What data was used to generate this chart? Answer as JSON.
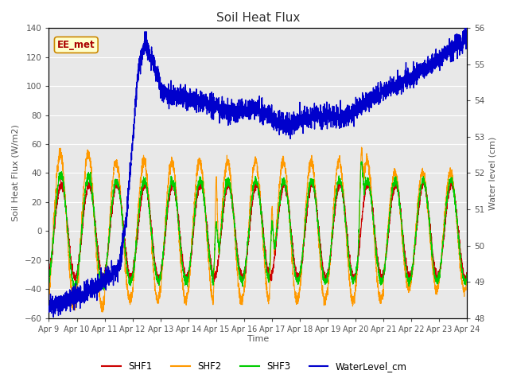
{
  "title": "Soil Heat Flux",
  "xlabel": "Time",
  "ylabel_left": "Soil Heat Flux (W/m2)",
  "ylabel_right": "Water level (cm)",
  "ylim_left": [
    -60,
    140
  ],
  "ylim_right": [
    48.0,
    56.0
  ],
  "yticks_left": [
    -60,
    -40,
    -20,
    0,
    20,
    40,
    60,
    80,
    100,
    120,
    140
  ],
  "yticks_right": [
    48.0,
    49.0,
    50.0,
    51.0,
    52.0,
    53.0,
    54.0,
    55.0,
    56.0
  ],
  "colors": {
    "SHF1": "#cc0000",
    "SHF2": "#ff9900",
    "SHF3": "#00cc00",
    "WaterLevel": "#0000cc"
  },
  "n_points": 3600,
  "days": 15,
  "annotation_text": "EE_met",
  "annotation_color": "#aa0000",
  "annotation_bg": "#ffffcc",
  "annotation_border": "#cc8800",
  "bg_color": "#e8e8e8",
  "legend_ncol": 4,
  "title_fontsize": 11,
  "label_fontsize": 8,
  "tick_fontsize": 7.5,
  "xtick_labels": [
    "Apr 9",
    "Apr 10",
    "Apr 11",
    "Apr 12",
    "Apr 13",
    "Apr 14",
    "Apr 15",
    "Apr 16",
    "Apr 17",
    "Apr 18",
    "Apr 19",
    "Apr 20",
    "Apr 21",
    "Apr 22",
    "Apr 23",
    "Apr 24"
  ]
}
